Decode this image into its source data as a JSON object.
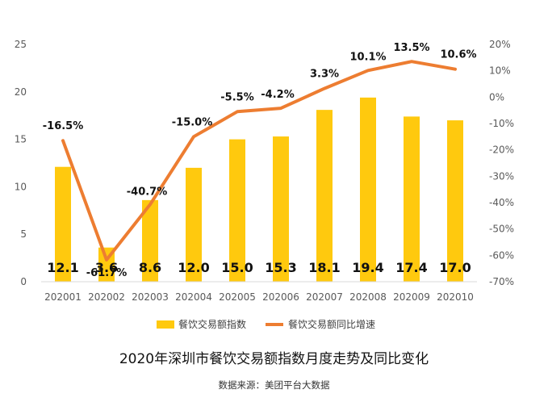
{
  "chart_data": {
    "type": "bar",
    "title": "2020年深圳市餐饮交易额指数月度走势及同比变化",
    "source": "数据来源：美团平台大数据",
    "categories": [
      "202001",
      "202002",
      "202003",
      "202004",
      "202005",
      "202006",
      "202007",
      "202008",
      "202009",
      "202010"
    ],
    "series": [
      {
        "name": "餐饮交易额指数",
        "type": "bar",
        "axis": "left",
        "color": "#FFC90E",
        "values": [
          12.1,
          3.6,
          8.6,
          12.0,
          15.0,
          15.3,
          18.1,
          19.4,
          17.4,
          17.0
        ],
        "labels": [
          "12.1",
          "3.6",
          "8.6",
          "12.0",
          "15.0",
          "15.3",
          "18.1",
          "19.4",
          "17.4",
          "17.0"
        ]
      },
      {
        "name": "餐饮交易额同比增速",
        "type": "line",
        "axis": "right",
        "color": "#ED7D31",
        "values": [
          -16.5,
          -61.7,
          -40.7,
          -15.0,
          -5.5,
          -4.2,
          3.3,
          10.1,
          13.5,
          10.6
        ],
        "labels": [
          "-16.5%",
          "-61.7%",
          "-40.7%",
          "-15.0%",
          "-5.5%",
          "-4.2%",
          "3.3%",
          "10.1%",
          "13.5%",
          "10.6%"
        ]
      }
    ],
    "y_left": {
      "min": 0,
      "max": 25,
      "ticks": [
        "0",
        "5",
        "10",
        "15",
        "20",
        "25"
      ]
    },
    "y_right": {
      "min": -70,
      "max": 20,
      "ticks": [
        "-70%",
        "-60%",
        "-50%",
        "-40%",
        "-30%",
        "-20%",
        "-10%",
        "0%",
        "10%",
        "20%"
      ]
    },
    "grid": false,
    "legend_position": "bottom"
  }
}
